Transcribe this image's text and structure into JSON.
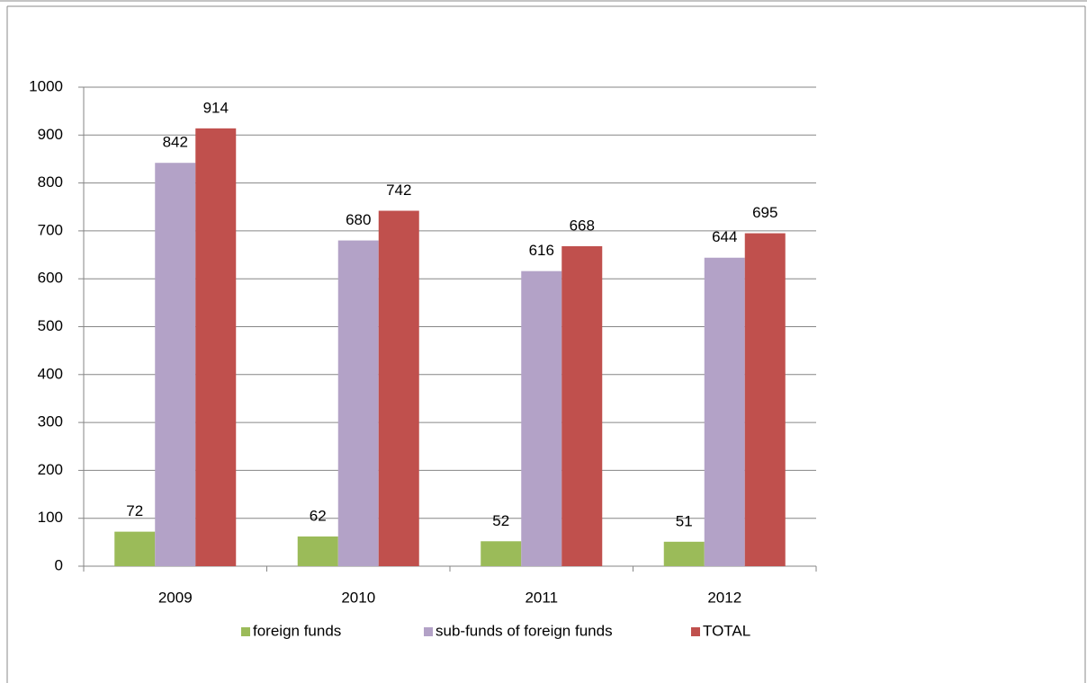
{
  "chart_data": {
    "type": "bar",
    "categories": [
      "2009",
      "2010",
      "2011",
      "2012"
    ],
    "series": [
      {
        "name": "foreign funds",
        "color": "#9bbb59",
        "values": [
          72,
          62,
          52,
          51
        ]
      },
      {
        "name": "sub-funds of foreign funds",
        "color": "#b3a2c7",
        "values": [
          842,
          680,
          616,
          644
        ]
      },
      {
        "name": "TOTAL",
        "color": "#c0504d",
        "values": [
          914,
          742,
          668,
          695
        ]
      }
    ],
    "ylim": [
      0,
      1000
    ],
    "yticks": [
      0,
      100,
      200,
      300,
      400,
      500,
      600,
      700,
      800,
      900,
      1000
    ],
    "grid": true,
    "legend": "bottom"
  }
}
